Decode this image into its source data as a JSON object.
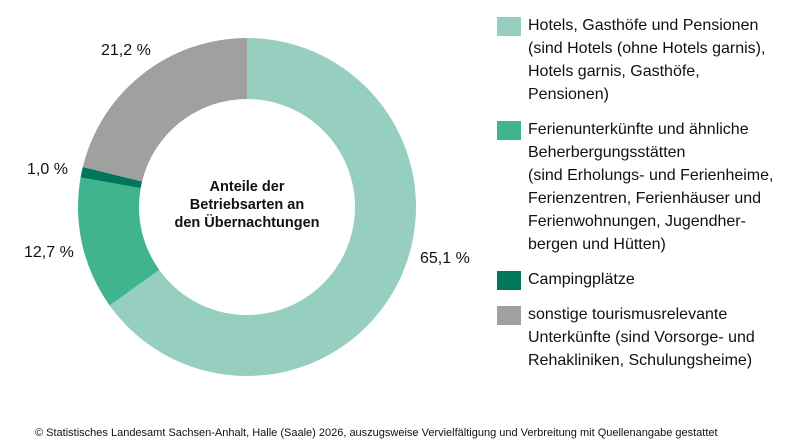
{
  "chart_data": {
    "type": "pie",
    "variant": "donut",
    "title": "Anteile der Betriebsarten an den Übernachtungen",
    "title_lines": [
      "Anteile der",
      "Betriebsarten an",
      "den Übernachtungen"
    ],
    "start": "top",
    "direction": "clockwise",
    "unit": "%",
    "slices": [
      {
        "label": "Hotels, Gasthöfe und Pensionen (sind Hotels (ohne Hotels garnis), Hotels garnis, Gasthöfe, Pensionen)",
        "value": 65.1,
        "value_label": "65,1 %",
        "color": "#96cfc0",
        "legend_lines": [
          "Hotels, Gasthöfe und Pensionen",
          "(sind Hotels (ohne Hotels garnis),",
          "Hotels garnis, Gasthöfe,",
          "Pensionen)"
        ]
      },
      {
        "label": "Ferienunterkünfte und ähnliche Beherbergungsstätten (sind Erholungs- und Ferienheime, Ferienzentren, Ferienhäuser und Ferienwohnungen, Jugendherbergen und Hütten)",
        "value": 12.7,
        "value_label": "12,7 %",
        "color": "#40b48f",
        "legend_lines": [
          "Ferienunterkünfte und ähnliche",
          "Beherbergungsstätten",
          "(sind Erholungs- und Ferienheime,",
          "Ferienzentren, Ferienhäuser und",
          "Ferienwohnungen, Jugendher-",
          "bergen und Hütten)"
        ]
      },
      {
        "label": "Campingplätze",
        "value": 1.0,
        "value_label": "1,0 %",
        "color": "#00765a",
        "legend_lines": [
          "Campingplätze"
        ]
      },
      {
        "label": "sonstige tourismusrelevante Unterkünfte (sind Vorsorge- und Rehakliniken, Schulungsheime)",
        "value": 21.2,
        "value_label": "21,2 %",
        "color": "#a0a0a0",
        "legend_lines": [
          "sonstige tourismusrelevante",
          "Unterkünfte (sind Vorsorge- und",
          "Rehakliniken, Schulungsheime)"
        ]
      }
    ],
    "legend_position": "right"
  },
  "footer": "© Statistisches Landesamt Sachsen-Anhalt, Halle (Saale) 2026, auszugsweise Vervielfältigung und Verbreitung mit Quellenangabe gestattet"
}
